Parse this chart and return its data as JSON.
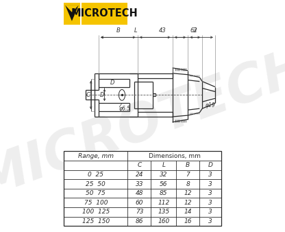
{
  "title": "MICROTECH",
  "logo_color": "#F5C400",
  "bg_color": "#FFFFFF",
  "watermark": "MICROTECH",
  "table_data": [
    [
      "0  25",
      "24",
      "32",
      "7",
      "3"
    ],
    [
      "25  50",
      "33",
      "56",
      "8",
      "3"
    ],
    [
      "50  75",
      "48",
      "85",
      "12",
      "3"
    ],
    [
      "75  100",
      "60",
      "112",
      "12",
      "3"
    ],
    [
      "100  125",
      "73",
      "135",
      "14",
      "3"
    ],
    [
      "125  150",
      "86",
      "160",
      "16",
      "3"
    ]
  ]
}
